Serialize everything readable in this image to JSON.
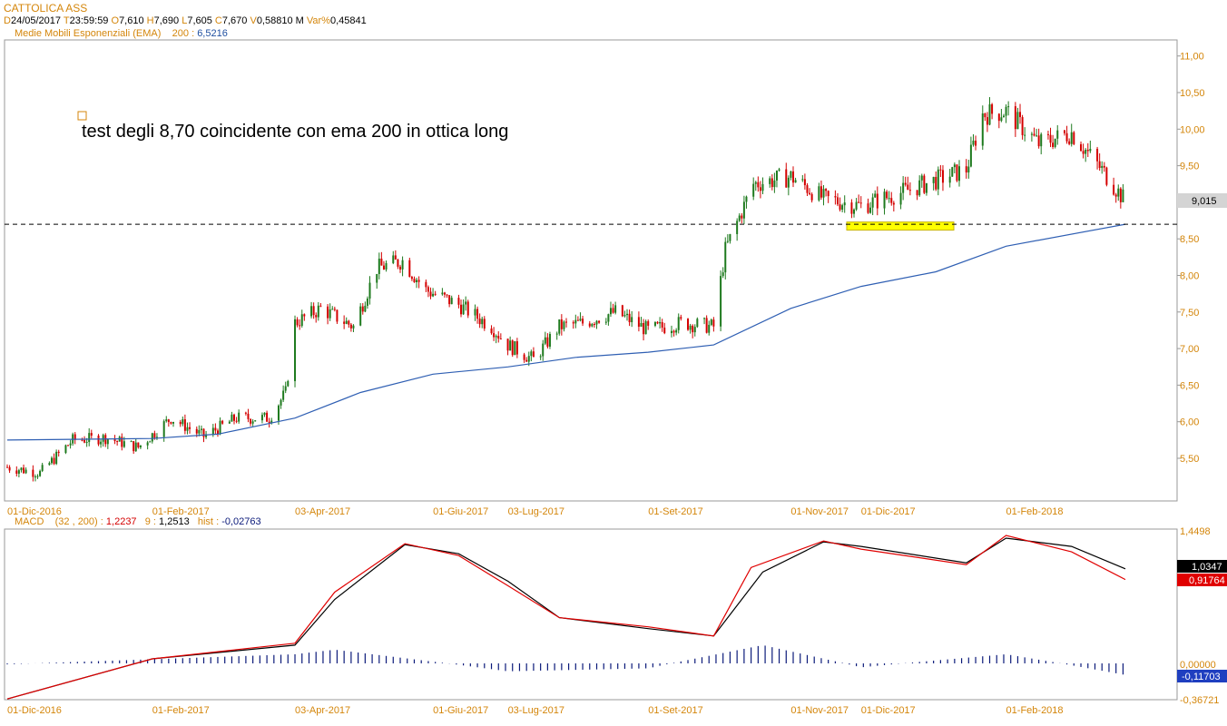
{
  "header": {
    "symbol": "CATTOLICA ASS",
    "d_label": "D",
    "date": "24/05/2017",
    "t_label": "T",
    "time": "23:59:59",
    "o_label": "O",
    "open": "7,610",
    "h_label": "H",
    "high": "7,690",
    "l_label": "L",
    "low": "7,605",
    "c_label": "C",
    "close": "7,670",
    "v_label": "V",
    "volume": "0,58810 M",
    "var_label": "Var%",
    "var": "0,45841",
    "ema_name": "Medie Mobili Esponenziali (EMA)",
    "ema_period": "200",
    "ema_colon": ":",
    "ema_value": "6,5216"
  },
  "annotation": {
    "text": "test degli 8,70 coincidente con ema 200 in ottica long"
  },
  "price_badge": "9,015",
  "macd_header": {
    "name": "MACD",
    "params": "(32 , 200)",
    "macd_value": "1,2237",
    "signal_period": "9",
    "signal_value": "1,2513",
    "hist_label": "hist",
    "hist_value": "-0,02763"
  },
  "macd_badges": {
    "black": "1,0347",
    "red": "0,91764",
    "hist": "-0,11703"
  },
  "colors": {
    "accent_orange": "#d4860b",
    "ema_line": "#2f5fb3",
    "candle_up": "#1e7a1e",
    "candle_down": "#d40000",
    "macd_line": "#000000",
    "signal_line": "#e00000",
    "histogram": "#0b1a7a",
    "support_zone": "#ffff00"
  },
  "chart_data": [
    {
      "type": "candlestick",
      "x_ticks": [
        "01-Dic-2016",
        "01-Feb-2017",
        "03-Apr-2017",
        "01-Giu-2017",
        "03-Lug-2017",
        "01-Set-2017",
        "01-Nov-2017",
        "01-Dic-2017",
        "01-Feb-2018"
      ],
      "y_ticks": [
        "5,50",
        "6,00",
        "6,50",
        "7,00",
        "7,50",
        "8,00",
        "8,50",
        "9,00",
        "9,50",
        "10,00",
        "10,50",
        "11,00"
      ],
      "ylim": [
        5.0,
        11.1
      ],
      "close_path": [
        [
          "01-Dic-2016",
          5.38
        ],
        [
          "15-Dic-2016",
          5.3
        ],
        [
          "29-Dic-2016",
          5.75
        ],
        [
          "12-Gen-2017",
          5.78
        ],
        [
          "26-Gen-2017",
          5.65
        ],
        [
          "09-Feb-2017",
          6.05
        ],
        [
          "23-Feb-2017",
          5.8
        ],
        [
          "09-Mar-2017",
          6.05
        ],
        [
          "23-Mar-2017",
          6.05
        ],
        [
          "30-Mar-2017",
          6.4
        ],
        [
          "03-Apr-2017",
          7.35
        ],
        [
          "14-Apr-2017",
          7.55
        ],
        [
          "28-Apr-2017",
          7.3
        ],
        [
          "08-Mag-2017",
          8.1
        ],
        [
          "19-Mag-2017",
          8.2
        ],
        [
          "29-Mag-2017",
          7.8
        ],
        [
          "12-Giu-2017",
          7.6
        ],
        [
          "26-Giu-2017",
          7.3
        ],
        [
          "03-Lug-2017",
          7.05
        ],
        [
          "14-Lug-2017",
          6.85
        ],
        [
          "25-Lug-2017",
          7.3
        ],
        [
          "04-Ago-2017",
          7.35
        ],
        [
          "18-Ago-2017",
          7.5
        ],
        [
          "01-Set-2017",
          7.25
        ],
        [
          "15-Set-2017",
          7.35
        ],
        [
          "29-Set-2017",
          7.3
        ],
        [
          "04-Ott-2017",
          8.35
        ],
        [
          "16-Ott-2017",
          9.25
        ],
        [
          "01-Nov-2017",
          9.35
        ],
        [
          "15-Nov-2017",
          9.05
        ],
        [
          "01-Dic-2017",
          8.95
        ],
        [
          "15-Dic-2017",
          9.1
        ],
        [
          "15-Gen-2018",
          9.45
        ],
        [
          "22-Gen-2018",
          10.2
        ],
        [
          "01-Feb-2018",
          10.25
        ],
        [
          "15-Feb-2018",
          9.8
        ],
        [
          "01-Mar-2018",
          9.95
        ],
        [
          "15-Mar-2018",
          9.4
        ],
        [
          "24-Mar-2018",
          9.015
        ]
      ],
      "ema200": [
        [
          "01-Dic-2016",
          5.75
        ],
        [
          "01-Feb-2017",
          5.77
        ],
        [
          "01-Mar-2017",
          5.83
        ],
        [
          "03-Apr-2017",
          6.05
        ],
        [
          "01-Mag-2017",
          6.4
        ],
        [
          "01-Giu-2017",
          6.65
        ],
        [
          "03-Lug-2017",
          6.75
        ],
        [
          "01-Ago-2017",
          6.88
        ],
        [
          "01-Set-2017",
          6.95
        ],
        [
          "29-Set-2017",
          7.05
        ],
        [
          "01-Nov-2017",
          7.55
        ],
        [
          "01-Dic-2017",
          7.85
        ],
        [
          "02-Gen-2018",
          8.05
        ],
        [
          "01-Feb-2018",
          8.4
        ],
        [
          "24-Mar-2018",
          8.7
        ]
      ],
      "support_level": 8.7,
      "support_zone": [
        8.62,
        8.73
      ],
      "last_value": 9.015
    },
    {
      "type": "line",
      "title": "MACD",
      "y_ticks": [
        "1,4498",
        "0,00000",
        "-0,36721"
      ],
      "ylim": [
        -0.36721,
        1.4498
      ],
      "series": [
        {
          "name": "MACD",
          "values": [
            [
              "01-Dic-2016",
              -0.36
            ],
            [
              "01-Feb-2017",
              0.05
            ],
            [
              "03-Apr-2017",
              0.2
            ],
            [
              "20-Apr-2017",
              0.7
            ],
            [
              "20-Mag-2017",
              1.3
            ],
            [
              "12-Giu-2017",
              1.2
            ],
            [
              "03-Lug-2017",
              0.9
            ],
            [
              "25-Lug-2017",
              0.5
            ],
            [
              "01-Set-2017",
              0.38
            ],
            [
              "29-Set-2017",
              0.3
            ],
            [
              "20-Ott-2017",
              1.0
            ],
            [
              "15-Nov-2017",
              1.33
            ],
            [
              "01-Dic-2017",
              1.28
            ],
            [
              "15-Gen-2018",
              1.1
            ],
            [
              "01-Feb-2018",
              1.37
            ],
            [
              "01-Mar-2018",
              1.28
            ],
            [
              "24-Mar-2018",
              1.0347
            ]
          ]
        },
        {
          "name": "Signal",
          "values": [
            [
              "01-Dic-2016",
              -0.36
            ],
            [
              "01-Feb-2017",
              0.05
            ],
            [
              "03-Apr-2017",
              0.22
            ],
            [
              "20-Apr-2017",
              0.78
            ],
            [
              "20-Mag-2017",
              1.31
            ],
            [
              "12-Giu-2017",
              1.18
            ],
            [
              "03-Lug-2017",
              0.85
            ],
            [
              "25-Lug-2017",
              0.5
            ],
            [
              "01-Set-2017",
              0.4
            ],
            [
              "29-Set-2017",
              0.3
            ],
            [
              "15-Ott-2017",
              1.05
            ],
            [
              "15-Nov-2017",
              1.34
            ],
            [
              "01-Dic-2017",
              1.25
            ],
            [
              "15-Gen-2018",
              1.08
            ],
            [
              "01-Feb-2018",
              1.4
            ],
            [
              "01-Mar-2018",
              1.22
            ],
            [
              "24-Mar-2018",
              0.91764
            ]
          ]
        },
        {
          "name": "hist",
          "values": [
            [
              "01-Dic-2016",
              -0.01
            ],
            [
              "03-Apr-2017",
              0.1
            ],
            [
              "20-Apr-2017",
              0.15
            ],
            [
              "03-Lug-2017",
              -0.08
            ],
            [
              "01-Set-2017",
              -0.05
            ],
            [
              "20-Ott-2017",
              0.2
            ],
            [
              "01-Dic-2017",
              -0.04
            ],
            [
              "01-Feb-2018",
              0.1
            ],
            [
              "24-Mar-2018",
              -0.11703
            ]
          ]
        }
      ]
    }
  ]
}
